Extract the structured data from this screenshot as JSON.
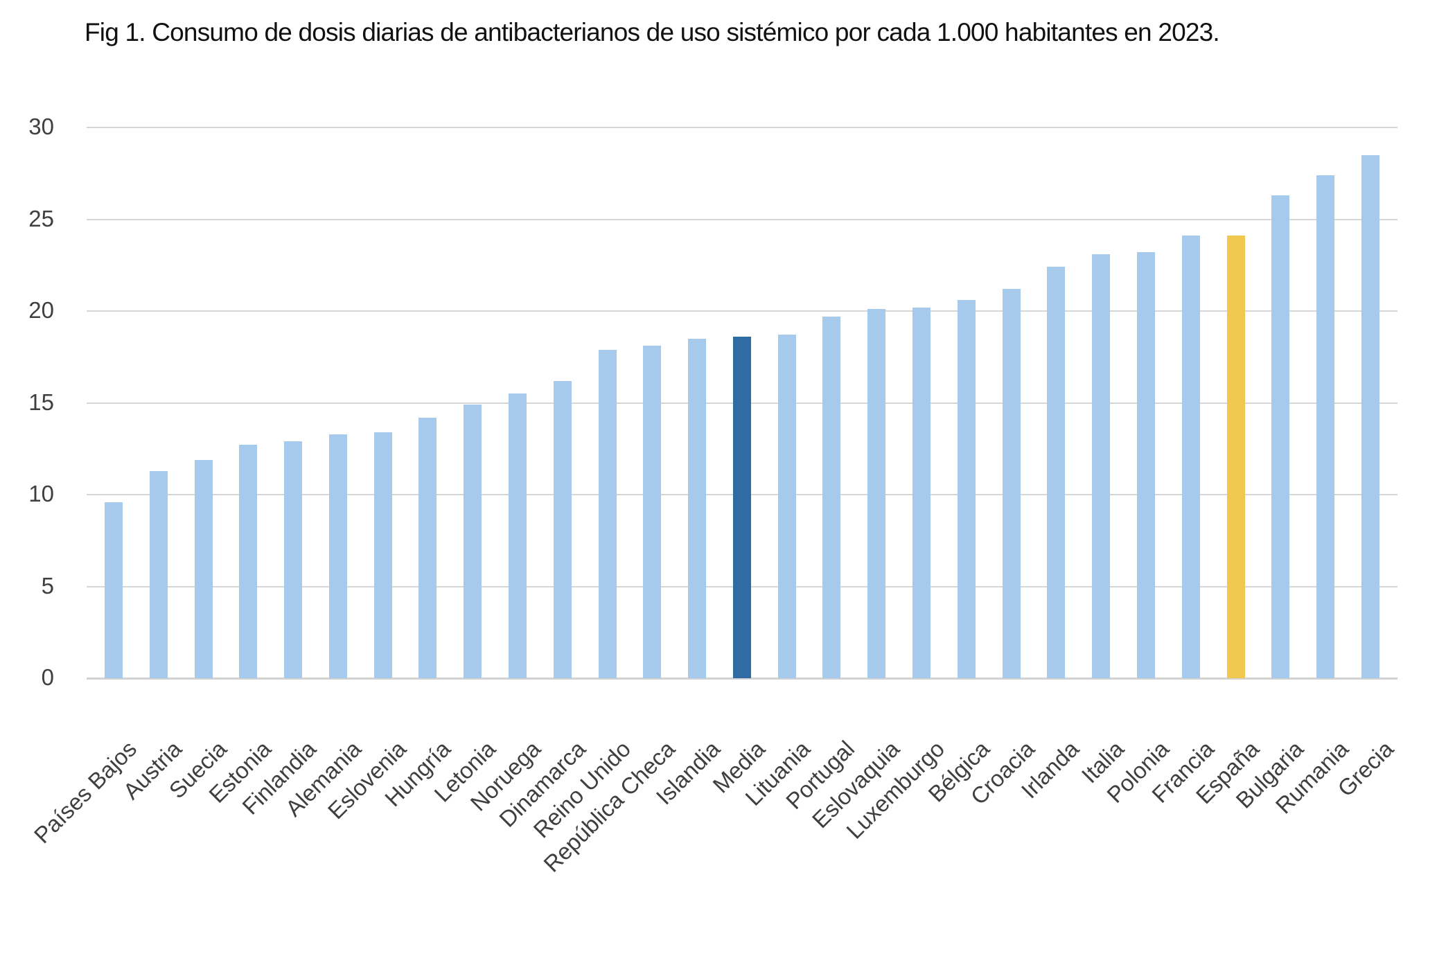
{
  "chart_data": {
    "type": "bar",
    "title": "Fig 1. Consumo de dosis diarias de antibacterianos de uso sistémico por cada 1.000 habitantes en 2023.",
    "xlabel": "",
    "ylabel": "",
    "ylim": [
      0,
      30
    ],
    "yticks": [
      0,
      5,
      10,
      15,
      20,
      25,
      30
    ],
    "grid": true,
    "legend": false,
    "categories": [
      "Países Bajos",
      "Austria",
      "Suecia",
      "Estonia",
      "Finlandia",
      "Alemania",
      "Eslovenia",
      "Hungría",
      "Letonia",
      "Noruega",
      "Dinamarca",
      "Reino Unido",
      "República Checa",
      "Islandia",
      "Media",
      "Lituania",
      "Portugal",
      "Eslovaquia",
      "Luxemburgo",
      "Bélgica",
      "Croacia",
      "Irlanda",
      "Italia",
      "Polonia",
      "Francia",
      "España",
      "Bulgaria",
      "Rumania",
      "Grecia"
    ],
    "values": [
      9.6,
      11.3,
      11.9,
      12.7,
      12.9,
      13.3,
      13.4,
      14.2,
      14.9,
      15.5,
      16.2,
      17.9,
      18.1,
      18.5,
      18.6,
      18.7,
      19.7,
      20.1,
      20.2,
      20.6,
      21.2,
      22.4,
      23.1,
      23.2,
      24.1,
      24.1,
      26.3,
      27.4,
      28.5
    ],
    "default_bar_color": "#A5CAEB",
    "highlights": [
      {
        "category": "Media",
        "color": "#2E6CA3"
      },
      {
        "category": "España",
        "color": "#F1C84F"
      }
    ],
    "colors": {
      "background": "#FFFFFF",
      "gridline": "#D6D6D6",
      "tick_text": "#3F3F3F",
      "title_text": "#111111"
    }
  }
}
